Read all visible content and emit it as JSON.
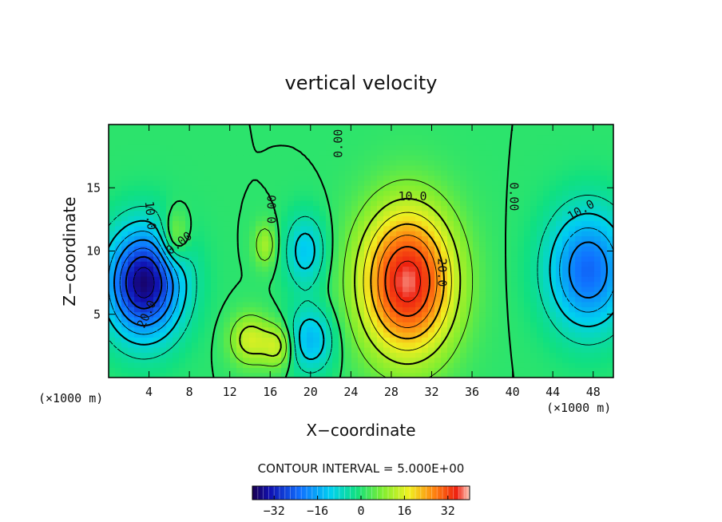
{
  "chart_data": {
    "type": "heatmap",
    "title": "vertical velocity",
    "xlabel": "X−coordinate",
    "ylabel": "Z−coordinate",
    "x_unit": "(×1000 m)",
    "y_unit": "(×1000 m)",
    "xlim": [
      0,
      50
    ],
    "ylim": [
      0,
      20
    ],
    "x_ticks": [
      4,
      8,
      12,
      16,
      20,
      24,
      28,
      32,
      36,
      40,
      44,
      48
    ],
    "y_ticks": [
      5,
      10,
      15
    ],
    "contour_interval_text": "CONTOUR INTERVAL = 5.000E+00",
    "contour_interval": 5.0,
    "colorbar": {
      "range": [
        -40,
        40
      ],
      "ticks": [
        -32,
        -16,
        0,
        16,
        32
      ],
      "tick_labels": [
        "−32",
        "−16",
        "0",
        "16",
        "32"
      ]
    },
    "contour_labels": [
      {
        "text": "10.0",
        "x": 30.1,
        "z": 14.3,
        "angle": 0
      },
      {
        "text": "20.0",
        "x": 33.0,
        "z": 8.3,
        "angle": 90
      },
      {
        "text": "0.00",
        "x": 16.2,
        "z": 13.3,
        "angle": -90
      },
      {
        "text": "0.00",
        "x": 22.8,
        "z": 18.5,
        "angle": -90
      },
      {
        "text": "0.00",
        "x": 40.1,
        "z": 14.3,
        "angle": 90
      },
      {
        "text": "0.00",
        "x": 7.0,
        "z": 10.6,
        "angle": -38
      },
      {
        "text": "10.0",
        "x": 46.8,
        "z": 13.2,
        "angle": -30
      },
      {
        "text": "10.0",
        "x": 4.1,
        "z": 12.8,
        "angle": 85
      },
      {
        "text": "20.0",
        "x": 3.8,
        "z": 5.0,
        "angle": -65
      }
    ],
    "features": [
      {
        "type": "max",
        "x": 29.6,
        "z": 7.6,
        "value": 38
      },
      {
        "type": "min",
        "x": 3.5,
        "z": 7.5,
        "value": -38
      },
      {
        "type": "min",
        "x": 47.5,
        "z": 8.5,
        "value": -25
      },
      {
        "type": "min",
        "x": 20.0,
        "z": 3.0,
        "value": -15
      },
      {
        "type": "min",
        "x": 19.5,
        "z": 10.0,
        "value": -13
      },
      {
        "type": "max",
        "x": 14.0,
        "z": 3.0,
        "value": 13
      },
      {
        "type": "max",
        "x": 16.8,
        "z": 2.5,
        "value": 12
      },
      {
        "type": "max",
        "x": 6.5,
        "z": 11.0,
        "value": 12
      },
      {
        "type": "max",
        "x": 15.5,
        "z": 10.5,
        "value": 9
      }
    ]
  }
}
